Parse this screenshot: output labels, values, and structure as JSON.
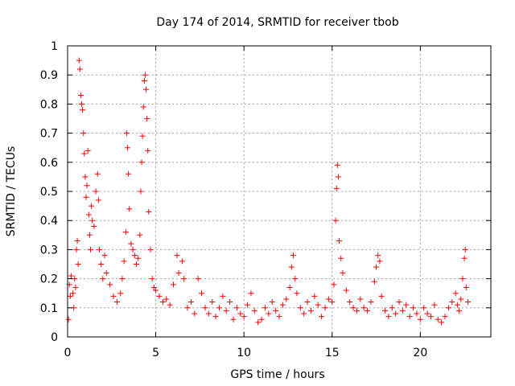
{
  "chart_data": {
    "type": "scatter",
    "title": "Day 174 of 2014, SRMTID for receiver tbob",
    "xlabel": "GPS time / hours",
    "ylabel": "SRMTID / TECUs",
    "xlim": [
      0,
      24
    ],
    "ylim": [
      0,
      1
    ],
    "xticks": [
      0,
      5,
      10,
      15,
      20
    ],
    "xtick_labels": [
      "0",
      "5",
      "10",
      "15",
      "20"
    ],
    "yticks": [
      0,
      0.1,
      0.2,
      0.3,
      0.4,
      0.5,
      0.6,
      0.7,
      0.8,
      0.9,
      1
    ],
    "ytick_labels": [
      "0",
      "0.1",
      "0.2",
      "0.3",
      "0.4",
      "0.5",
      "0.6",
      "0.7",
      "0.8",
      "0.9",
      "1"
    ],
    "grid": true,
    "marker": "+",
    "colors": {
      "marker": "#ff0000",
      "axis": "#000000",
      "grid": "#a0a0a0"
    },
    "series": [
      {
        "name": "SRMTID",
        "points": [
          [
            0.05,
            0.06
          ],
          [
            0.1,
            0.18
          ],
          [
            0.15,
            0.14
          ],
          [
            0.2,
            0.21
          ],
          [
            0.3,
            0.15
          ],
          [
            0.35,
            0.1
          ],
          [
            0.4,
            0.2
          ],
          [
            0.45,
            0.17
          ],
          [
            0.5,
            0.3
          ],
          [
            0.55,
            0.33
          ],
          [
            0.6,
            0.25
          ],
          [
            0.65,
            0.95
          ],
          [
            0.7,
            0.92
          ],
          [
            0.75,
            0.83
          ],
          [
            0.8,
            0.8
          ],
          [
            0.85,
            0.78
          ],
          [
            0.9,
            0.7
          ],
          [
            0.95,
            0.63
          ],
          [
            1.0,
            0.55
          ],
          [
            1.05,
            0.48
          ],
          [
            1.1,
            0.52
          ],
          [
            1.15,
            0.64
          ],
          [
            1.2,
            0.42
          ],
          [
            1.25,
            0.35
          ],
          [
            1.3,
            0.3
          ],
          [
            1.35,
            0.45
          ],
          [
            1.4,
            0.4
          ],
          [
            1.5,
            0.38
          ],
          [
            1.6,
            0.5
          ],
          [
            1.7,
            0.56
          ],
          [
            1.75,
            0.47
          ],
          [
            1.8,
            0.3
          ],
          [
            1.9,
            0.25
          ],
          [
            2.0,
            0.2
          ],
          [
            2.1,
            0.28
          ],
          [
            2.2,
            0.22
          ],
          [
            2.4,
            0.18
          ],
          [
            2.6,
            0.14
          ],
          [
            2.8,
            0.12
          ],
          [
            3.0,
            0.15
          ],
          [
            3.1,
            0.2
          ],
          [
            3.2,
            0.26
          ],
          [
            3.3,
            0.36
          ],
          [
            3.35,
            0.7
          ],
          [
            3.4,
            0.65
          ],
          [
            3.45,
            0.56
          ],
          [
            3.5,
            0.44
          ],
          [
            3.6,
            0.32
          ],
          [
            3.7,
            0.3
          ],
          [
            3.8,
            0.28
          ],
          [
            3.9,
            0.25
          ],
          [
            4.0,
            0.27
          ],
          [
            4.1,
            0.35
          ],
          [
            4.15,
            0.5
          ],
          [
            4.2,
            0.6
          ],
          [
            4.25,
            0.69
          ],
          [
            4.3,
            0.79
          ],
          [
            4.35,
            0.88
          ],
          [
            4.4,
            0.9
          ],
          [
            4.45,
            0.85
          ],
          [
            4.5,
            0.75
          ],
          [
            4.55,
            0.64
          ],
          [
            4.6,
            0.43
          ],
          [
            4.7,
            0.3
          ],
          [
            4.8,
            0.2
          ],
          [
            4.9,
            0.17
          ],
          [
            5.0,
            0.16
          ],
          [
            5.2,
            0.14
          ],
          [
            5.4,
            0.12
          ],
          [
            5.6,
            0.13
          ],
          [
            5.8,
            0.11
          ],
          [
            6.0,
            0.18
          ],
          [
            6.2,
            0.28
          ],
          [
            6.3,
            0.22
          ],
          [
            6.5,
            0.26
          ],
          [
            6.6,
            0.2
          ],
          [
            6.8,
            0.1
          ],
          [
            7.0,
            0.12
          ],
          [
            7.2,
            0.08
          ],
          [
            7.4,
            0.2
          ],
          [
            7.6,
            0.15
          ],
          [
            7.8,
            0.1
          ],
          [
            8.0,
            0.08
          ],
          [
            8.2,
            0.12
          ],
          [
            8.4,
            0.07
          ],
          [
            8.6,
            0.1
          ],
          [
            8.8,
            0.14
          ],
          [
            9.0,
            0.09
          ],
          [
            9.2,
            0.12
          ],
          [
            9.4,
            0.06
          ],
          [
            9.6,
            0.1
          ],
          [
            9.8,
            0.08
          ],
          [
            10.0,
            0.07
          ],
          [
            10.2,
            0.11
          ],
          [
            10.4,
            0.15
          ],
          [
            10.6,
            0.09
          ],
          [
            10.8,
            0.05
          ],
          [
            11.0,
            0.06
          ],
          [
            11.2,
            0.1
          ],
          [
            11.4,
            0.08
          ],
          [
            11.6,
            0.12
          ],
          [
            11.8,
            0.09
          ],
          [
            12.0,
            0.07
          ],
          [
            12.2,
            0.11
          ],
          [
            12.4,
            0.13
          ],
          [
            12.6,
            0.17
          ],
          [
            12.7,
            0.24
          ],
          [
            12.8,
            0.28
          ],
          [
            12.9,
            0.2
          ],
          [
            13.0,
            0.15
          ],
          [
            13.2,
            0.1
          ],
          [
            13.4,
            0.08
          ],
          [
            13.6,
            0.12
          ],
          [
            13.8,
            0.09
          ],
          [
            14.0,
            0.14
          ],
          [
            14.2,
            0.11
          ],
          [
            14.4,
            0.07
          ],
          [
            14.6,
            0.1
          ],
          [
            14.8,
            0.13
          ],
          [
            15.0,
            0.12
          ],
          [
            15.1,
            0.18
          ],
          [
            15.2,
            0.4
          ],
          [
            15.25,
            0.51
          ],
          [
            15.3,
            0.59
          ],
          [
            15.35,
            0.55
          ],
          [
            15.4,
            0.33
          ],
          [
            15.5,
            0.27
          ],
          [
            15.6,
            0.22
          ],
          [
            15.8,
            0.16
          ],
          [
            16.0,
            0.12
          ],
          [
            16.2,
            0.1
          ],
          [
            16.4,
            0.09
          ],
          [
            16.6,
            0.13
          ],
          [
            16.8,
            0.1
          ],
          [
            17.0,
            0.09
          ],
          [
            17.2,
            0.12
          ],
          [
            17.4,
            0.19
          ],
          [
            17.5,
            0.24
          ],
          [
            17.6,
            0.28
          ],
          [
            17.7,
            0.26
          ],
          [
            17.8,
            0.14
          ],
          [
            18.0,
            0.09
          ],
          [
            18.2,
            0.07
          ],
          [
            18.4,
            0.1
          ],
          [
            18.6,
            0.08
          ],
          [
            18.8,
            0.12
          ],
          [
            19.0,
            0.09
          ],
          [
            19.2,
            0.11
          ],
          [
            19.4,
            0.07
          ],
          [
            19.6,
            0.1
          ],
          [
            19.8,
            0.08
          ],
          [
            20.0,
            0.06
          ],
          [
            20.2,
            0.1
          ],
          [
            20.4,
            0.08
          ],
          [
            20.6,
            0.07
          ],
          [
            20.8,
            0.11
          ],
          [
            21.0,
            0.06
          ],
          [
            21.2,
            0.05
          ],
          [
            21.4,
            0.07
          ],
          [
            21.6,
            0.1
          ],
          [
            21.8,
            0.12
          ],
          [
            22.0,
            0.15
          ],
          [
            22.1,
            0.11
          ],
          [
            22.2,
            0.09
          ],
          [
            22.3,
            0.13
          ],
          [
            22.4,
            0.2
          ],
          [
            22.5,
            0.27
          ],
          [
            22.55,
            0.3
          ],
          [
            22.6,
            0.17
          ],
          [
            22.7,
            0.12
          ]
        ]
      }
    ]
  }
}
